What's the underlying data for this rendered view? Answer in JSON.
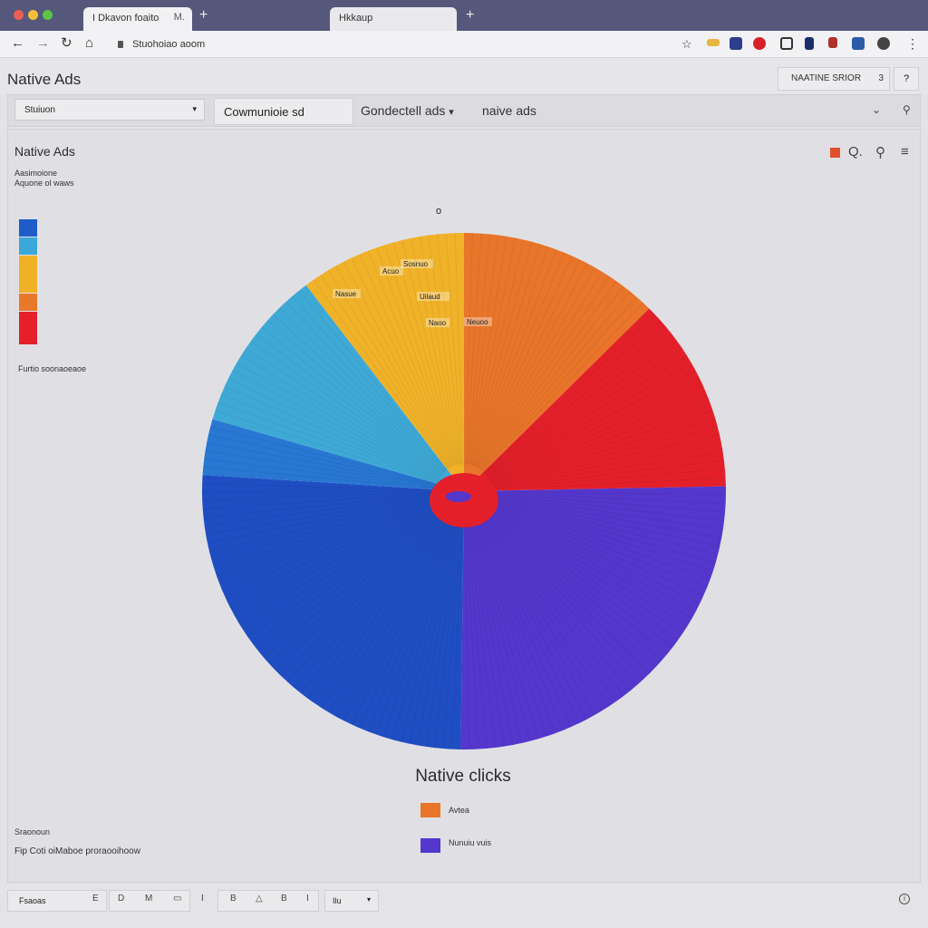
{
  "browser": {
    "tabs": [
      {
        "label": "I Dkavon foaito",
        "close": "M."
      },
      {
        "label": "Hkkaup",
        "close": ""
      }
    ],
    "new_tab": "+",
    "url": "Stuohoiao aoom",
    "extension_colors": [
      "#555",
      "#e7b640",
      "#2c3e8c",
      "#d8202a",
      "#333",
      "#1a2e6a",
      "#b0302a",
      "#2b5aa8",
      "#444"
    ]
  },
  "app": {
    "title": "Native Ads",
    "header_button": "NAATINE SRIOR",
    "header_button_small": "3"
  },
  "filters": {
    "select1": "Stuiuon",
    "select2": "Cowmunioie sd",
    "chip1": "Gondectell ads",
    "chip2": "naive ads"
  },
  "panel": {
    "title": "Native Ads",
    "sub1": "Aasimoione",
    "sub2": "Aquone ol waws",
    "below_legend": "Furtio soonaoeaoe",
    "center_label": "o",
    "footer_tiny": "Sraonoun",
    "footer_text": "Fip Coti oiMaboe proraooihoow"
  },
  "side_legend_colors": [
    "#1f5cc8",
    "#3aa8d8",
    "#f0b128",
    "#e8782a",
    "#e5202a"
  ],
  "chart_data": {
    "type": "pie",
    "title": "Native clicks",
    "slices": [
      {
        "label": "",
        "value": 12.5,
        "color": "#e8752a"
      },
      {
        "label": "",
        "value": 12.2,
        "color": "#e3202a"
      },
      {
        "label": "",
        "value": 25.5,
        "color": "#5437cc"
      },
      {
        "label": "",
        "value": 25.8,
        "color": "#1f4ec2"
      },
      {
        "label": "",
        "value": 3.5,
        "color": "#2877d2"
      },
      {
        "label": "",
        "value": 10.2,
        "color": "#3fa9d6"
      },
      {
        "label": "",
        "value": 10.3,
        "color": "#f0b229"
      }
    ],
    "inner_labels": [
      "Sosnuo",
      "Nasue",
      "Acuo",
      "Uilaud",
      "Naoo",
      "Neuoo"
    ],
    "legend": [
      {
        "label": "Avtea",
        "color": "#e8752a"
      },
      {
        "label": "Nunuiu vuis",
        "color": "#5437cc"
      }
    ]
  },
  "bottom": {
    "field": "Fsaoas",
    "icons": [
      "E",
      "D",
      "M",
      "▭",
      "I",
      "B",
      "△",
      "B",
      "I"
    ],
    "select": "Ilu",
    "help": "i"
  }
}
